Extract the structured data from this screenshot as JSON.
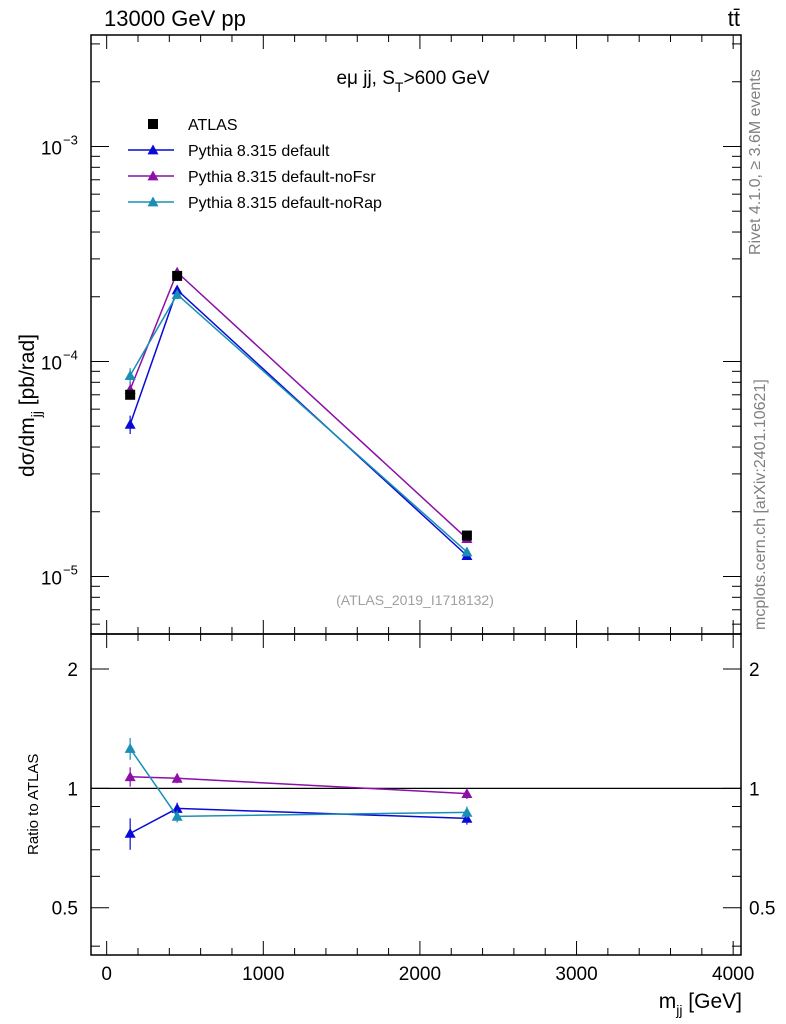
{
  "header": {
    "collision": "13000 GeV pp",
    "process": "tt̄"
  },
  "side_text": {
    "rivet": "Rivet 4.1.0, ≥ 3.6M events",
    "source": "mcplots.cern.ch [arXiv:2401.10621]"
  },
  "chart_data": {
    "type": "line",
    "title": "eμ jj, S_T>600 GeV",
    "title_main": "eμ jj, S",
    "title_sub": "T",
    "title_tail": ">600 GeV",
    "analysis_label": "(ATLAS_2019_I1718132)",
    "xlabel": "m_jj [GeV]",
    "xlabel_main": "m",
    "xlabel_sub": "jj",
    "xlabel_unit": " [GeV]",
    "ylabel": "dσ/dm_jj [pb/rad]",
    "ylabel_main": "dσ/dm",
    "ylabel_sub": "jj",
    "ylabel_unit": " [pb/rad]",
    "ratio_ylabel": "Ratio to ATLAS",
    "xlim": [
      -100,
      4050
    ],
    "ylim": [
      5.4e-06,
      0.0033
    ],
    "ratio_ylim": [
      0.38,
      2.45
    ],
    "x_ticks": [
      0,
      1000,
      2000,
      3000,
      4000
    ],
    "x_tick_labels": [
      "0",
      "1000",
      "2000",
      "3000",
      "4000"
    ],
    "y_ticks": [
      {
        "value": 1e-05,
        "base": "10",
        "exp": "−5"
      },
      {
        "value": 0.0001,
        "base": "10",
        "exp": "−4"
      },
      {
        "value": 0.001,
        "base": "10",
        "exp": "−3"
      }
    ],
    "ratio_ticks": [
      {
        "value": 0.5,
        "label": "0.5"
      },
      {
        "value": 1,
        "label": "1"
      },
      {
        "value": 2,
        "label": "2"
      }
    ],
    "x": [
      150,
      450,
      2300
    ],
    "data": {
      "name": "ATLAS",
      "color": "#000000",
      "values": [
        7e-05,
        0.00025,
        1.55e-05
      ]
    },
    "series": [
      {
        "name": "Pythia 8.315 default",
        "color": "#0a0ad6",
        "values": [
          5.1e-05,
          0.000215,
          1.25e-05
        ],
        "yerr": [
          5e-06,
          1e-05,
          5e-07
        ],
        "ratio": [
          0.77,
          0.89,
          0.84
        ],
        "ratio_err": [
          0.07,
          0.03,
          0.03
        ]
      },
      {
        "name": "Pythia 8.315 default-noFsr",
        "color": "#8c0fa8",
        "values": [
          7.4e-05,
          0.00026,
          1.5e-05
        ],
        "yerr": [
          6e-06,
          1.2e-05,
          6e-07
        ],
        "ratio": [
          1.07,
          1.06,
          0.97
        ],
        "ratio_err": [
          0.06,
          0.03,
          0.03
        ]
      },
      {
        "name": "Pythia 8.315 default-noRap",
        "color": "#1a8fb5",
        "values": [
          8.6e-05,
          0.000205,
          1.3e-05
        ],
        "yerr": [
          7e-06,
          1e-05,
          5e-07
        ],
        "ratio": [
          1.26,
          0.85,
          0.87
        ],
        "ratio_err": [
          0.08,
          0.03,
          0.03
        ]
      }
    ],
    "legend_position": "top-left"
  }
}
